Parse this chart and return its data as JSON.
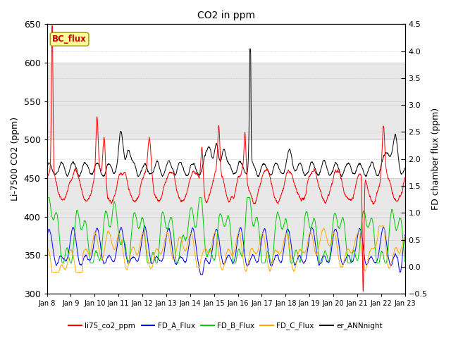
{
  "title": "CO2 in ppm",
  "ylabel_left": "Li-7500 CO2 (ppm)",
  "ylabel_right": "FD chamber flux (ppm)",
  "xlim": [
    0,
    15
  ],
  "ylim_left": [
    300,
    650
  ],
  "ylim_right": [
    -0.5,
    4.5
  ],
  "xtick_labels": [
    "Jan 8",
    "Jan 9",
    "Jan 10",
    "Jan 11",
    "Jan 12",
    "Jan 13",
    "Jan 14",
    "Jan 15",
    "Jan 16",
    "Jan 17",
    "Jan 18",
    "Jan 19",
    "Jan 20",
    "Jan 21",
    "Jan 22",
    "Jan 23"
  ],
  "yticks_left": [
    300,
    350,
    400,
    450,
    500,
    550,
    600,
    650
  ],
  "yticks_right": [
    -0.5,
    0.0,
    0.5,
    1.0,
    1.5,
    2.0,
    2.5,
    3.0,
    3.5,
    4.0,
    4.5
  ],
  "legend_entries": [
    "li75_co2_ppm",
    "FD_A_Flux",
    "FD_B_Flux",
    "FD_C_Flux",
    "er_ANNnight"
  ],
  "legend_colors": [
    "#ff0000",
    "#0000ff",
    "#00cc00",
    "#ffaa00",
    "#000000"
  ],
  "bc_flux_box_color": "#ffff99",
  "bc_flux_text_color": "#cc0000",
  "shaded_band1_y1": 500,
  "shaded_band1_y2": 600,
  "shaded_band1_color": "#e8e8e8",
  "shaded_band2_y1": 350,
  "shaded_band2_y2": 450,
  "shaded_band2_color": "#e8e8e8",
  "plot_bg_color": "#ffffff"
}
